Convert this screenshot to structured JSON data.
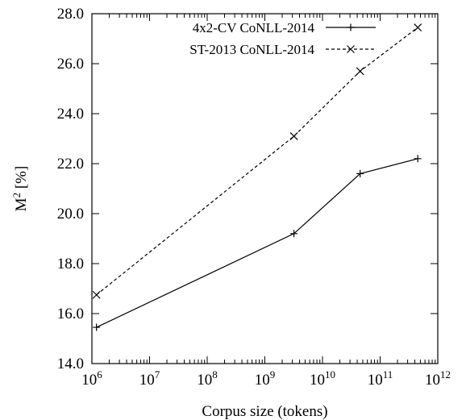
{
  "chart_data": {
    "type": "line",
    "title": "",
    "xlabel": "Corpus size (tokens)",
    "ylabel": "M",
    "ylabel_sup": "2",
    "ylabel_suffix": " [%]",
    "x_scale": "log",
    "xlim": [
      1000000,
      1000000000000
    ],
    "ylim": [
      14.0,
      28.0
    ],
    "x_ticks": [
      1000000,
      10000000,
      100000000,
      1000000000,
      10000000000,
      100000000000,
      1000000000000
    ],
    "x_tick_exponents": [
      "6",
      "7",
      "8",
      "9",
      "10",
      "11",
      "12"
    ],
    "x_tick_base": "10",
    "y_ticks": [
      "14.0",
      "16.0",
      "18.0",
      "20.0",
      "22.0",
      "24.0",
      "26.0",
      "28.0"
    ],
    "grid": false,
    "legend_position": "top-right",
    "series": [
      {
        "name": "4x2-CV CoNLL-2014",
        "line_style": "solid",
        "marker": "plus",
        "x": [
          1200000,
          3200000000,
          45000000000,
          450000000000
        ],
        "y": [
          15.45,
          19.2,
          21.6,
          22.2
        ]
      },
      {
        "name": "ST-2013 CoNLL-2014",
        "line_style": "dashed",
        "marker": "cross",
        "x": [
          1200000,
          3200000000,
          45000000000,
          450000000000
        ],
        "y": [
          16.75,
          23.1,
          25.7,
          27.45
        ]
      }
    ]
  }
}
